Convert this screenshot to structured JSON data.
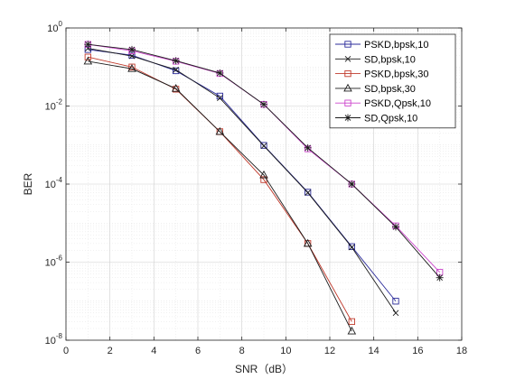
{
  "chart_data": {
    "type": "line",
    "title": "",
    "xlabel": "SNR（dB）",
    "ylabel": "BER",
    "xlim": [
      0,
      18
    ],
    "ylim": [
      1e-08,
      1
    ],
    "yscale": "log",
    "grid": true,
    "minor_grid": true,
    "legend_position": "top-right",
    "x_ticks": [
      0,
      2,
      4,
      6,
      8,
      10,
      12,
      14,
      16,
      18
    ],
    "y_ticks": [
      {
        "value": 1,
        "exp": "0"
      },
      {
        "value": 0.01,
        "exp": "-2"
      },
      {
        "value": 0.0001,
        "exp": "-4"
      },
      {
        "value": 1e-06,
        "exp": "-6"
      },
      {
        "value": 1e-08,
        "exp": "-8"
      }
    ],
    "series": [
      {
        "name": "PSKD,bpsk,10",
        "color": "#2b2b9a",
        "marker": "square",
        "x": [
          1,
          3,
          5,
          7,
          9,
          11,
          13,
          15
        ],
        "y": [
          0.28,
          0.2,
          0.08,
          0.018,
          0.00098,
          6.2e-05,
          2.5e-06,
          1e-07
        ]
      },
      {
        "name": "SD,bpsk,10",
        "color": "#1a1a1a",
        "marker": "x",
        "x": [
          1,
          3,
          5,
          7,
          9,
          11,
          13,
          15
        ],
        "y": [
          0.3,
          0.19,
          0.085,
          0.016,
          0.00095,
          6e-05,
          2.4e-06,
          5e-08
        ]
      },
      {
        "name": "PSKD,bpsk,30",
        "color": "#c0392b",
        "marker": "square",
        "x": [
          1,
          3,
          5,
          7,
          9,
          11,
          13
        ],
        "y": [
          0.18,
          0.1,
          0.027,
          0.0022,
          0.00013,
          3e-06,
          3e-08
        ]
      },
      {
        "name": "SD,bpsk,30",
        "color": "#1a1a1a",
        "marker": "triangle",
        "x": [
          1,
          3,
          5,
          7,
          9,
          11,
          13
        ],
        "y": [
          0.14,
          0.09,
          0.028,
          0.0022,
          0.00017,
          3e-06,
          1.7e-08
        ]
      },
      {
        "name": "PSKD,Qpsk,10",
        "color": "#cc44cc",
        "marker": "square",
        "x": [
          1,
          3,
          5,
          7,
          9,
          11,
          13,
          15,
          17
        ],
        "y": [
          0.38,
          0.26,
          0.14,
          0.068,
          0.011,
          0.0008,
          0.0001,
          8.5e-06,
          5.5e-07
        ]
      },
      {
        "name": "SD,Qpsk,10",
        "color": "#1a1a1a",
        "marker": "star",
        "x": [
          1,
          3,
          5,
          7,
          9,
          11,
          13,
          15,
          17
        ],
        "y": [
          0.38,
          0.28,
          0.145,
          0.07,
          0.011,
          0.00085,
          0.0001,
          8e-06,
          4e-07
        ]
      }
    ]
  }
}
